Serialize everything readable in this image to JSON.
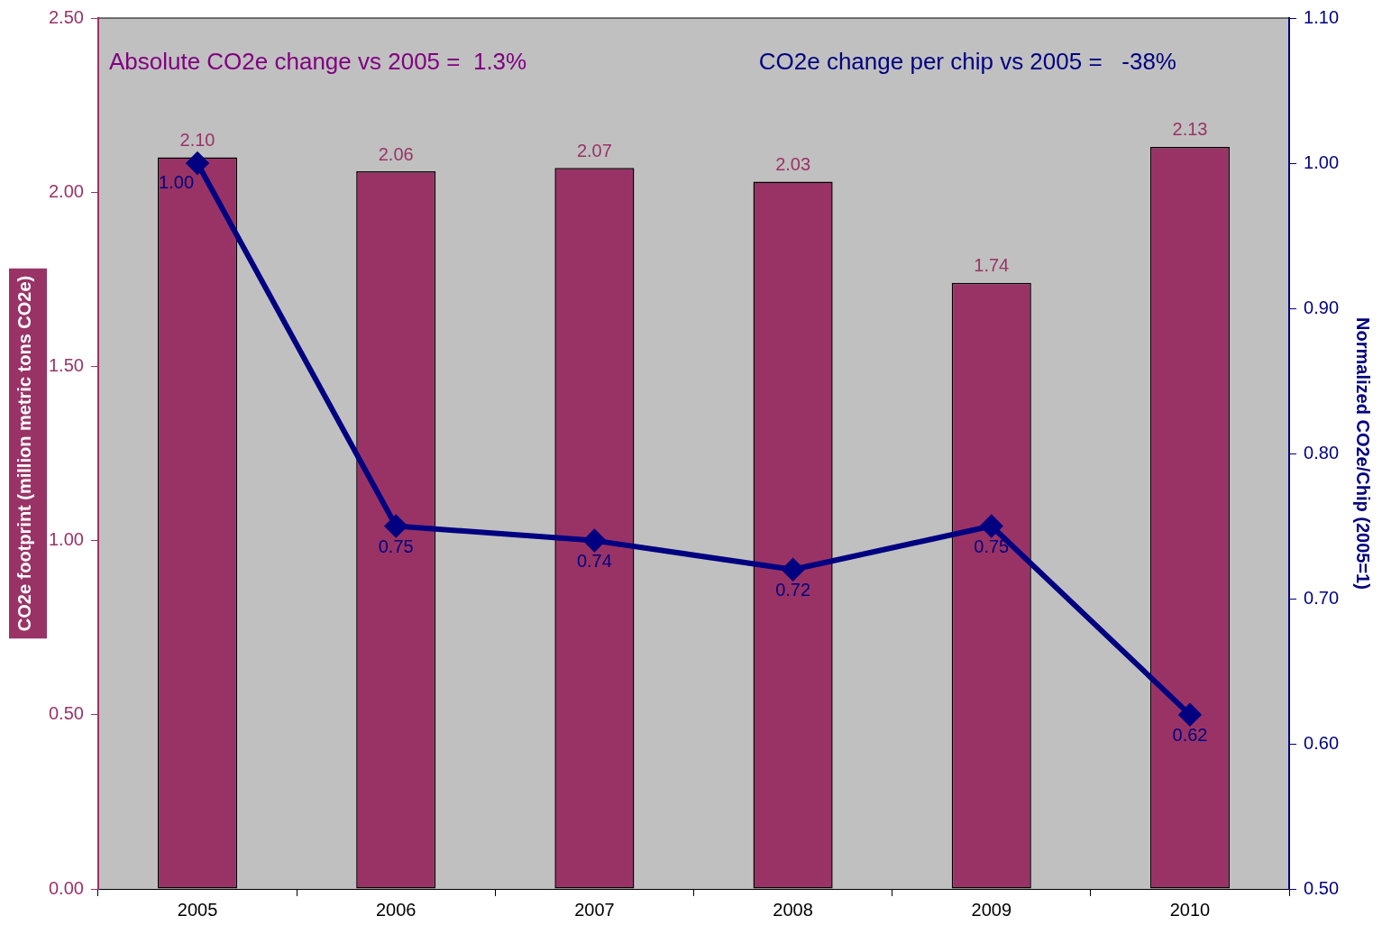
{
  "chart_data": {
    "type": "bar",
    "categories": [
      "2005",
      "2006",
      "2007",
      "2008",
      "2009",
      "2010"
    ],
    "series": [
      {
        "axis": "y",
        "color": "#993366",
        "values": [
          2.1,
          2.06,
          2.07,
          2.03,
          1.74,
          2.13
        ],
        "value_labels": [
          "2.10",
          "2.06",
          "2.07",
          "2.03",
          "1.74",
          "2.13"
        ]
      },
      {
        "type": "line",
        "axis": "y2",
        "color": "#000080",
        "marker": "diamond",
        "values": [
          1.0,
          0.75,
          0.74,
          0.72,
          0.75,
          0.62
        ],
        "value_labels": [
          "1.00",
          "0.75",
          "0.74",
          "0.72",
          "0.75",
          "0.62"
        ]
      }
    ],
    "ylabel": "CO2e footprint (million metric tons CO2e)",
    "y2label": "Normalized CO2e/Chip (2005=1)",
    "ylim": [
      0,
      2.5
    ],
    "yticks": [
      {
        "value": 0,
        "label": "0.00"
      },
      {
        "value": 0.5,
        "label": "0.50"
      },
      {
        "value": 1,
        "label": "1.00"
      },
      {
        "value": 1.5,
        "label": "1.50"
      },
      {
        "value": 2,
        "label": "2.00"
      },
      {
        "value": 2.5,
        "label": "2.50"
      }
    ],
    "y2lim": [
      0.5,
      1.1
    ],
    "y2ticks": [
      {
        "value": 0.5,
        "label": "0.50"
      },
      {
        "value": 0.6,
        "label": "0.60"
      },
      {
        "value": 0.7,
        "label": "0.70"
      },
      {
        "value": 0.8,
        "label": "0.80"
      },
      {
        "value": 0.9,
        "label": "0.90"
      },
      {
        "value": 1.0,
        "label": "1.00"
      },
      {
        "value": 1.1,
        "label": "1.10"
      }
    ],
    "annotations": [
      "Absolute CO2e change vs 2005 =  1.3%",
      "CO2e change per chip vs 2005 =   -38%"
    ],
    "legend": false
  }
}
